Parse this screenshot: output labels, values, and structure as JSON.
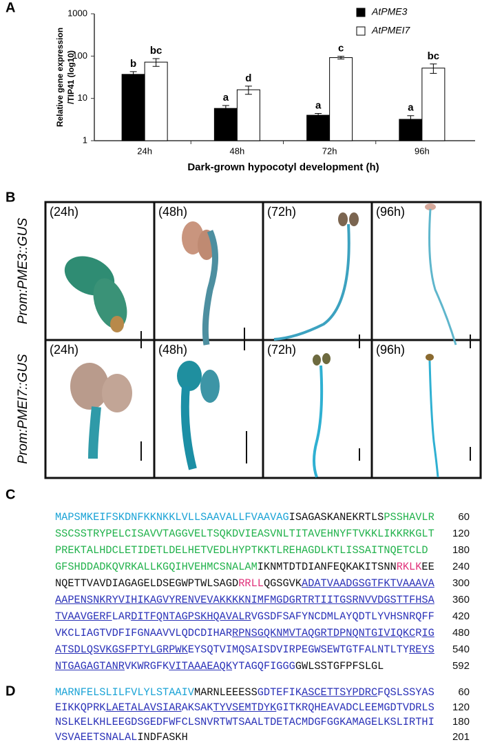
{
  "panels": {
    "A": {
      "label": "A",
      "chart_data": {
        "type": "bar",
        "log_scale": true,
        "y_label": [
          "Relative gene expression",
          "/TIP41 (log10)"
        ],
        "x_label": "Dark-grown hypocotyl development (h)",
        "categories": [
          "24h",
          "48h",
          "72h",
          "96h"
        ],
        "series": [
          {
            "name": "AtPME3",
            "color": "#000000",
            "values": [
              37,
              5.8,
              4,
              3.2
            ],
            "errors": [
              6,
              1,
              0.4,
              0.7
            ],
            "letters": [
              "b",
              "a",
              "a",
              "a"
            ]
          },
          {
            "name": "AtPMEI7",
            "color": "#ffffff",
            "values": [
              72,
              16,
              92,
              52
            ],
            "errors": [
              15,
              3.5,
              7,
              13
            ],
            "letters": [
              "bc",
              "d",
              "c",
              "bc"
            ]
          }
        ],
        "ylim": [
          1,
          1000
        ],
        "yticks": [
          1,
          10,
          100,
          1000
        ],
        "legend": "top-right"
      }
    },
    "B": {
      "label": "B",
      "rows": [
        "Prom:PME3::GUS",
        "Prom:PMEI7::GUS"
      ],
      "columns": [
        "(24h)",
        "(48h)",
        "(72h)",
        "(96h)"
      ]
    },
    "C": {
      "label": "C",
      "lines": [
        {
          "segments": [
            {
              "text": "MAPSMKEIFSKDNFKKNKKLVLLSAAVALLFVAAVAG",
              "color": "#1ba3d6",
              "underline": false
            },
            {
              "text": "ISAGASKANEKRTLS",
              "color": "#111111",
              "underline": false
            },
            {
              "text": "PSSHAVLR",
              "color": "#22b24c",
              "underline": false
            }
          ],
          "end": 60
        },
        {
          "segments": [
            {
              "text": "SSCSSTRYPELCISAVVTAGGVELTSQKDVIEASVNLTITAVEHNYFTVKKLIKKRKGLT",
              "color": "#22b24c",
              "underline": false
            }
          ],
          "end": 120
        },
        {
          "segments": [
            {
              "text": "PREKTALHDCLETIDETLDELHETVEDLHYPTKKTLREHAGDLKTLISSAITNQETCLD",
              "color": "#22b24c",
              "underline": false
            }
          ],
          "end": 180
        },
        {
          "segments": [
            {
              "text": "GFSHDDADKQVRKALLKGQIHVEHMCSNALAM",
              "color": "#22b24c",
              "underline": false
            },
            {
              "text": "IKNMTDTDIANFEQKAKITSNN",
              "color": "#111111",
              "underline": false
            },
            {
              "text": "RKLK",
              "color": "#e0307a",
              "underline": false
            },
            {
              "text": "EE",
              "color": "#111111",
              "underline": false
            }
          ],
          "end": 240
        },
        {
          "segments": [
            {
              "text": "NQETTVAVDIAGAGELDSEGWPTWLSAGD",
              "color": "#111111",
              "underline": false
            },
            {
              "text": "RRLL",
              "color": "#e0307a",
              "underline": false
            },
            {
              "text": "QGSGVK",
              "color": "#111111",
              "underline": false
            },
            {
              "text": "ADATVAADGSGTFKTVAAAVA",
              "color": "#2b32b8",
              "underline": true
            }
          ],
          "end": 300
        },
        {
          "segments": [
            {
              "text": "AAPENSNKRYVIHIKAGVYR",
              "color": "#2b32b8",
              "underline": true
            },
            {
              "text": "ENVEVAKKKKNIMFMGDGR",
              "color": "#2b32b8",
              "underline": true
            },
            {
              "text": "TRTIITGSRNVVDGSTTFHSA",
              "color": "#2b32b8",
              "underline": true
            }
          ],
          "end": 360
        },
        {
          "segments": [
            {
              "text": "TVAAVGERF",
              "color": "#2b32b8",
              "underline": true
            },
            {
              "text": "LAR",
              "color": "#2b32b8",
              "underline": false
            },
            {
              "text": "DITFQNTAGPSKHQAVALR",
              "color": "#2b32b8",
              "underline": true
            },
            {
              "text": "VGSDFSAFYNCDMLAYQDTLYVHSNRQFF",
              "color": "#2b32b8",
              "underline": false
            }
          ],
          "end": 420
        },
        {
          "segments": [
            {
              "text": "VKCLIAGTVDFIFGNAAVVLQDCDIHAR",
              "color": "#2b32b8",
              "underline": false
            },
            {
              "text": "RPNSGQKNMVTAQGRTDPNQNTGIVIQKC",
              "color": "#2b32b8",
              "underline": true
            },
            {
              "text": "R",
              "color": "#2b32b8",
              "underline": false
            },
            {
              "text": "IG",
              "color": "#2b32b8",
              "underline": true
            }
          ],
          "end": 480
        },
        {
          "segments": [
            {
              "text": "ATSDLQSVKGSFPTYLGRPWK",
              "color": "#2b32b8",
              "underline": true
            },
            {
              "text": "EYSQTVIMQSAISDVIRPEGWSEWTGTFALNTLTY",
              "color": "#2b32b8",
              "underline": false
            },
            {
              "text": "REYS",
              "color": "#2b32b8",
              "underline": true
            }
          ],
          "end": 540
        },
        {
          "segments": [
            {
              "text": "NTGAGAGTANR",
              "color": "#2b32b8",
              "underline": true
            },
            {
              "text": "VKWRGFK",
              "color": "#2b32b8",
              "underline": false
            },
            {
              "text": "VITAAAEAQK",
              "color": "#2b32b8",
              "underline": true
            },
            {
              "text": "YTAGQFIGGG",
              "color": "#2b32b8",
              "underline": false
            },
            {
              "text": "GWLSSTGFPFSLGL",
              "color": "#111111",
              "underline": false
            }
          ],
          "end": 592
        }
      ]
    },
    "D": {
      "label": "D",
      "lines": [
        {
          "segments": [
            {
              "text": "MARNFELSLILFVLYLSTAAIV",
              "color": "#1ba3d6",
              "underline": false
            },
            {
              "text": "MARNLEEESS",
              "color": "#111111",
              "underline": false
            },
            {
              "text": "GDTEFIK",
              "color": "#2b32b8",
              "underline": false
            },
            {
              "text": "ASCETTSYPDRC",
              "color": "#2b32b8",
              "underline": true
            },
            {
              "text": "FQSLSSYAS",
              "color": "#2b32b8",
              "underline": false
            }
          ],
          "end": 60
        },
        {
          "segments": [
            {
              "text": "EIKKQPRK",
              "color": "#2b32b8",
              "underline": false
            },
            {
              "text": "LAETALAVSIAR",
              "color": "#2b32b8",
              "underline": true
            },
            {
              "text": "AKSAK",
              "color": "#2b32b8",
              "underline": false
            },
            {
              "text": "TYVSEMTDYK",
              "color": "#2b32b8",
              "underline": true
            },
            {
              "text": "GITKRQHEAVADCLEEMGDTVDRLS",
              "color": "#2b32b8",
              "underline": false
            }
          ],
          "end": 120
        },
        {
          "segments": [
            {
              "text": "NSLKELKHLEEGDSGEDFWFCLSNVRTWTSAALTDETACMDGFGGKAMAGELKSLIRTHI",
              "color": "#2b32b8",
              "underline": false
            }
          ],
          "end": 180
        },
        {
          "segments": [
            {
              "text": "VSVAEETSNALAL",
              "color": "#2b32b8",
              "underline": false
            },
            {
              "text": "INDFASKH",
              "color": "#111111",
              "underline": false
            }
          ],
          "end": 201
        }
      ]
    }
  }
}
